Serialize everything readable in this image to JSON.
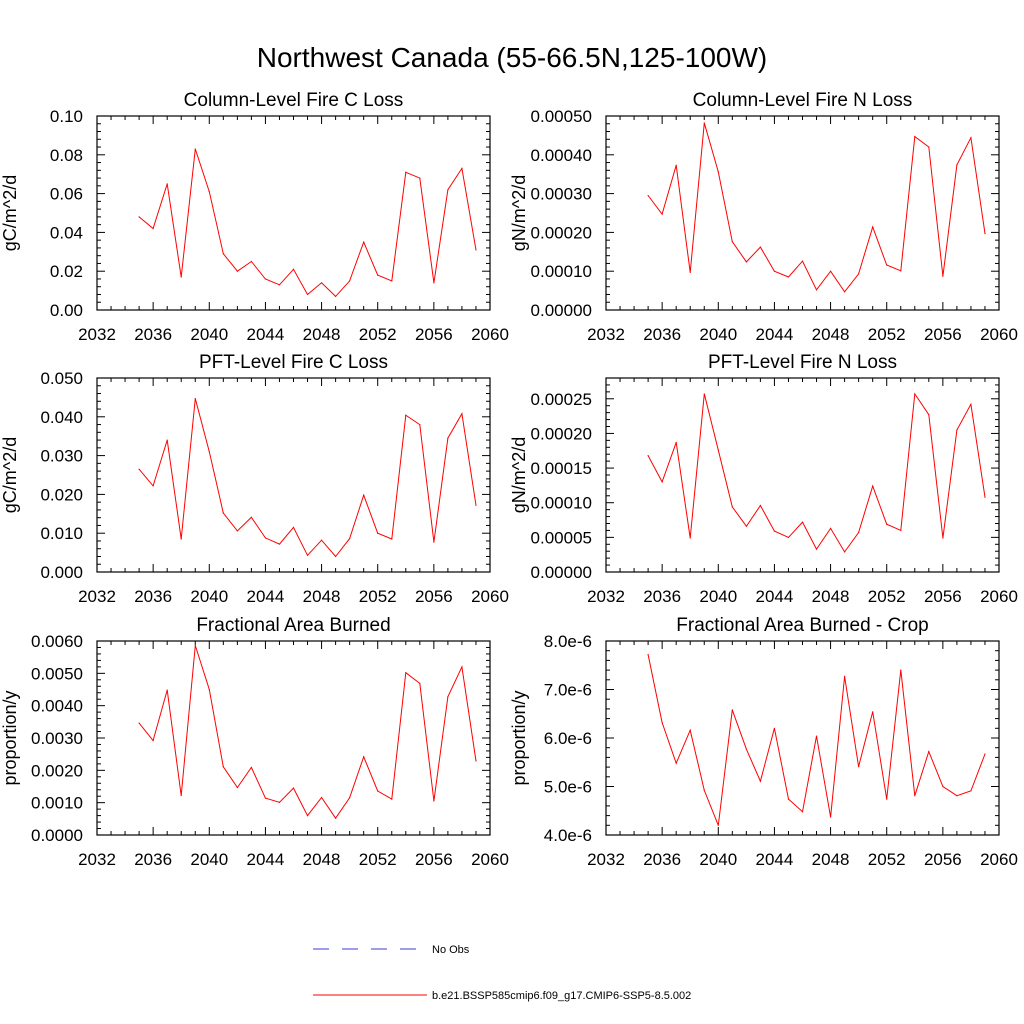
{
  "figure_title": "Northwest Canada (55-66.5N,125-100W)",
  "legend": [
    {
      "label": "No Obs",
      "color": "#3b3bd6",
      "style": "dashed"
    },
    {
      "label": "b.e21.BSSP585cmip6.f09_g17.CMIP6-SSP5-8.5.002",
      "color": "#ff0000",
      "style": "solid"
    }
  ],
  "chart_data": [
    {
      "type": "line",
      "title": "Column-Level Fire C Loss",
      "ylabel": "gC/m^2/d",
      "xlim": [
        2032,
        2060
      ],
      "xticks": [
        "2032",
        "2036",
        "2040",
        "2044",
        "2048",
        "2052",
        "2056",
        "2060"
      ],
      "ylim": [
        0,
        0.1
      ],
      "yticks": [
        "0.00",
        "0.02",
        "0.04",
        "0.06",
        "0.08",
        "0.10"
      ],
      "x": [
        2035,
        2036,
        2037,
        2038,
        2039,
        2040,
        2041,
        2042,
        2043,
        2044,
        2045,
        2046,
        2047,
        2048,
        2049,
        2050,
        2051,
        2052,
        2053,
        2054,
        2055,
        2056,
        2057,
        2058,
        2059
      ],
      "series": [
        {
          "color": "#ff0000",
          "values": [
            0.048,
            0.042,
            0.065,
            0.017,
            0.083,
            0.061,
            0.029,
            0.02,
            0.025,
            0.016,
            0.013,
            0.021,
            0.008,
            0.014,
            0.007,
            0.015,
            0.035,
            0.018,
            0.015,
            0.071,
            0.068,
            0.014,
            0.062,
            0.073,
            0.031
          ]
        }
      ]
    },
    {
      "type": "line",
      "title": "Column-Level Fire N Loss",
      "ylabel": "gN/m^2/d",
      "xlim": [
        2032,
        2060
      ],
      "xticks": [
        "2032",
        "2036",
        "2040",
        "2044",
        "2048",
        "2052",
        "2056",
        "2060"
      ],
      "ylim": [
        0,
        0.0005
      ],
      "yticks": [
        "0.00000",
        "0.00010",
        "0.00020",
        "0.00030",
        "0.00040",
        "0.00050"
      ],
      "x": [
        2035,
        2036,
        2037,
        2038,
        2039,
        2040,
        2041,
        2042,
        2043,
        2044,
        2045,
        2046,
        2047,
        2048,
        2049,
        2050,
        2051,
        2052,
        2053,
        2054,
        2055,
        2056,
        2057,
        2058,
        2059
      ],
      "series": [
        {
          "color": "#ff0000",
          "values": [
            0.000295,
            0.000247,
            0.000373,
            9.7e-05,
            0.000482,
            0.000356,
            0.000176,
            0.000124,
            0.000162,
            0.0001,
            8.5e-05,
            0.000126,
            5.2e-05,
            0.0001,
            4.7e-05,
            9.3e-05,
            0.000214,
            0.000116,
            0.000101,
            0.000447,
            0.00042,
            8.7e-05,
            0.000374,
            0.000444,
            0.000197
          ]
        }
      ]
    },
    {
      "type": "line",
      "title": "PFT-Level Fire C Loss",
      "ylabel": "gC/m^2/d",
      "xlim": [
        2032,
        2060
      ],
      "xticks": [
        "2032",
        "2036",
        "2040",
        "2044",
        "2048",
        "2052",
        "2056",
        "2060"
      ],
      "ylim": [
        0,
        0.05
      ],
      "yticks": [
        "0.000",
        "0.010",
        "0.020",
        "0.030",
        "0.040",
        "0.050"
      ],
      "x": [
        2035,
        2036,
        2037,
        2038,
        2039,
        2040,
        2041,
        2042,
        2043,
        2044,
        2045,
        2046,
        2047,
        2048,
        2049,
        2050,
        2051,
        2052,
        2053,
        2054,
        2055,
        2056,
        2057,
        2058,
        2059
      ],
      "series": [
        {
          "color": "#ff0000",
          "values": [
            0.0265,
            0.0222,
            0.034,
            0.0085,
            0.0447,
            0.031,
            0.0152,
            0.0106,
            0.0141,
            0.0088,
            0.0072,
            0.0115,
            0.0043,
            0.0082,
            0.004,
            0.0086,
            0.0198,
            0.01,
            0.0085,
            0.0404,
            0.038,
            0.0077,
            0.0345,
            0.0408,
            0.0172
          ]
        }
      ]
    },
    {
      "type": "line",
      "title": "PFT-Level Fire N Loss",
      "ylabel": "gN/m^2/d",
      "xlim": [
        2032,
        2060
      ],
      "xticks": [
        "2032",
        "2036",
        "2040",
        "2044",
        "2048",
        "2052",
        "2056",
        "2060"
      ],
      "ylim": [
        0,
        0.00028
      ],
      "yticks": [
        "0.00000",
        "0.00005",
        "0.00010",
        "0.00015",
        "0.00020",
        "0.00025"
      ],
      "x": [
        2035,
        2036,
        2037,
        2038,
        2039,
        2040,
        2041,
        2042,
        2043,
        2044,
        2045,
        2046,
        2047,
        2048,
        2049,
        2050,
        2051,
        2052,
        2053,
        2054,
        2055,
        2056,
        2057,
        2058,
        2059
      ],
      "series": [
        {
          "color": "#ff0000",
          "values": [
            0.000168,
            0.00013,
            0.000187,
            4.9e-05,
            0.000257,
            0.000176,
            9.4e-05,
            6.6e-05,
            9.6e-05,
            5.9e-05,
            5e-05,
            7.2e-05,
            3.3e-05,
            6.3e-05,
            2.9e-05,
            5.7e-05,
            0.000124,
            6.9e-05,
            6e-05,
            0.000257,
            0.000227,
            4.9e-05,
            0.000205,
            0.000242,
            0.000108
          ]
        }
      ]
    },
    {
      "type": "line",
      "title": "Fractional Area Burned",
      "ylabel": "proportion/y",
      "xlim": [
        2032,
        2060
      ],
      "xticks": [
        "2032",
        "2036",
        "2040",
        "2044",
        "2048",
        "2052",
        "2056",
        "2060"
      ],
      "ylim": [
        0,
        0.006
      ],
      "yticks": [
        "0.0000",
        "0.0010",
        "0.0020",
        "0.0030",
        "0.0040",
        "0.0050",
        "0.0060"
      ],
      "x": [
        2035,
        2036,
        2037,
        2038,
        2039,
        2040,
        2041,
        2042,
        2043,
        2044,
        2045,
        2046,
        2047,
        2048,
        2049,
        2050,
        2051,
        2052,
        2053,
        2054,
        2055,
        2056,
        2057,
        2058,
        2059
      ],
      "series": [
        {
          "color": "#ff0000",
          "values": [
            0.00346,
            0.00292,
            0.00448,
            0.00122,
            0.00586,
            0.0045,
            0.00211,
            0.00147,
            0.00209,
            0.00114,
            0.00101,
            0.00145,
            0.0006,
            0.00116,
            0.00052,
            0.00115,
            0.00242,
            0.00136,
            0.00111,
            0.00502,
            0.00469,
            0.00105,
            0.00428,
            0.0052,
            0.00229
          ]
        }
      ]
    },
    {
      "type": "line",
      "title": "Fractional Area Burned - Crop",
      "ylabel": "proportion/y",
      "xlim": [
        2032,
        2060
      ],
      "xticks": [
        "2032",
        "2036",
        "2040",
        "2044",
        "2048",
        "2052",
        "2056",
        "2060"
      ],
      "ylim": [
        4e-06,
        8e-06
      ],
      "yticks": [
        "4.0e-6",
        "5.0e-6",
        "6.0e-6",
        "7.0e-6",
        "8.0e-6"
      ],
      "x": [
        2035,
        2036,
        2037,
        2038,
        2039,
        2040,
        2041,
        2042,
        2043,
        2044,
        2045,
        2046,
        2047,
        2048,
        2049,
        2050,
        2051,
        2052,
        2053,
        2054,
        2055,
        2056,
        2057,
        2058,
        2059
      ],
      "series": [
        {
          "color": "#ff0000",
          "values": [
            7.72e-06,
            6.32e-06,
            5.48e-06,
            6.16e-06,
            4.92e-06,
            4.2e-06,
            6.58e-06,
            5.77e-06,
            5.11e-06,
            6.2e-06,
            4.74e-06,
            4.48e-06,
            6.04e-06,
            4.37e-06,
            7.27e-06,
            5.41e-06,
            6.54e-06,
            4.74e-06,
            7.4e-06,
            4.81e-06,
            5.72e-06,
            5e-06,
            4.81e-06,
            4.91e-06,
            5.67e-06
          ]
        }
      ]
    }
  ]
}
